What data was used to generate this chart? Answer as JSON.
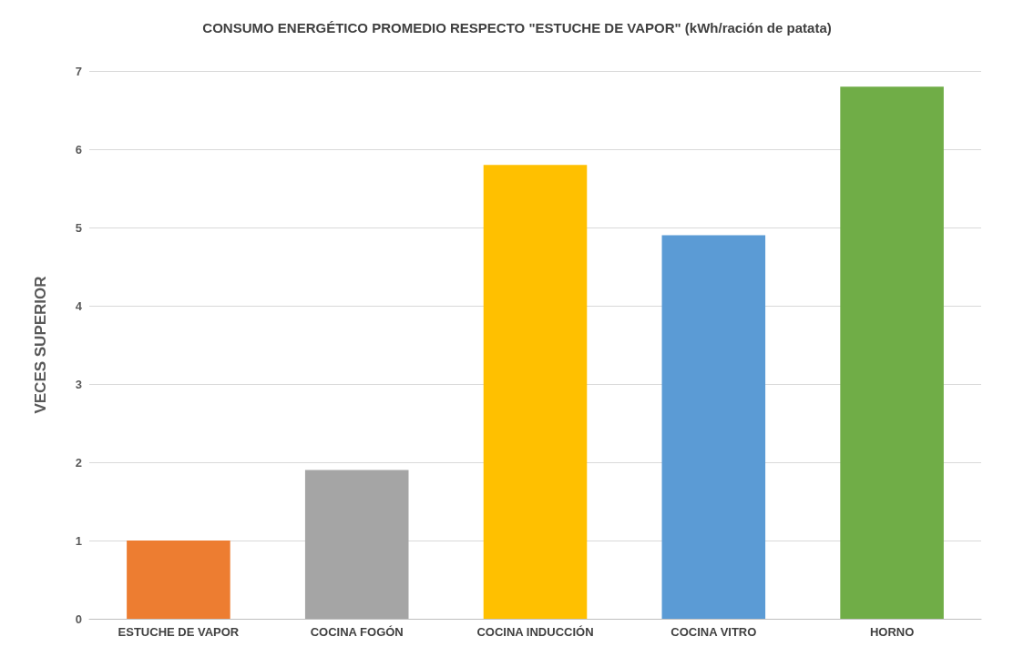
{
  "chart_data": {
    "type": "bar",
    "title": "CONSUMO ENERGÉTICO PROMEDIO RESPECTO \"ESTUCHE DE VAPOR\" (kWh/ración de patata)",
    "ylabel": "VECES SUPERIOR",
    "categories": [
      "ESTUCHE DE VAPOR",
      "COCINA FOGÓN",
      "COCINA INDUCCIÓN",
      "COCINA VITRO",
      "HORNO"
    ],
    "values": [
      1,
      1.9,
      5.8,
      4.9,
      6.8
    ],
    "colors": [
      "#ed7d31",
      "#a5a5a5",
      "#ffc000",
      "#5b9bd5",
      "#70ad47"
    ],
    "ylim": [
      0,
      7
    ],
    "yticks": [
      0,
      1,
      2,
      3,
      4,
      5,
      6,
      7
    ],
    "grid": "y"
  }
}
